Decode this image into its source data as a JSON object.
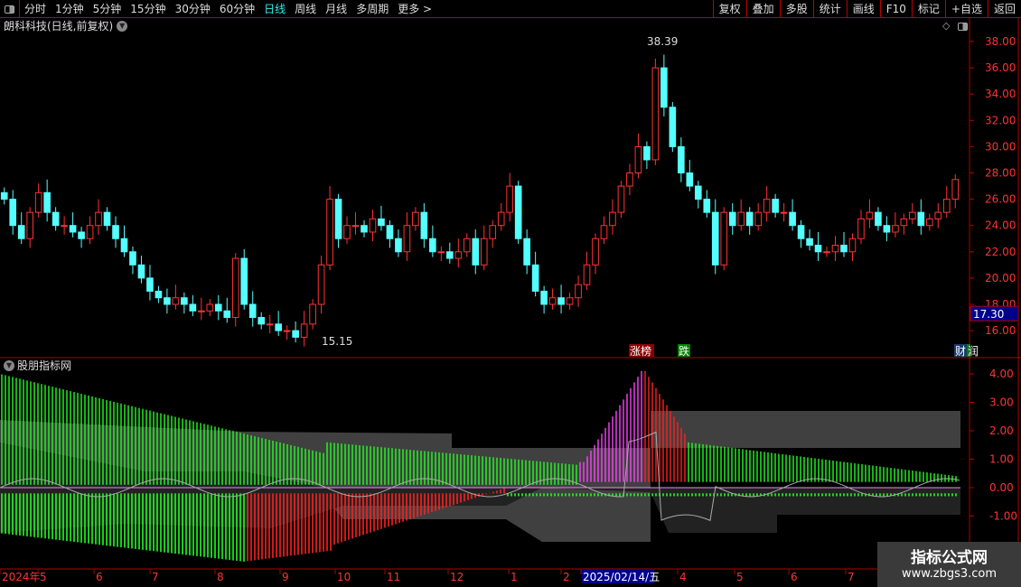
{
  "toolbar": {
    "periods": [
      "分时",
      "1分钟",
      "5分钟",
      "15分钟",
      "30分钟",
      "60分钟",
      "日线",
      "周线",
      "月线",
      "多周期",
      "更多 >"
    ],
    "active": "日线",
    "right_buttons": [
      "复权",
      "叠加",
      "多股",
      "统计",
      "画线",
      "F10",
      "标记",
      "+自选",
      "返回"
    ]
  },
  "stock": {
    "title": "朗科科技(日线,前复权)",
    "current_price": "17.30",
    "high_label": "38.39",
    "low_label": "15.15"
  },
  "price_axis": {
    "ticks": [
      "38.00",
      "36.00",
      "34.00",
      "32.00",
      "30.00",
      "28.00",
      "26.00",
      "24.00",
      "22.00",
      "20.00",
      "18.00",
      "16.00"
    ]
  },
  "markers": {
    "limit_up": "涨榜",
    "drop": "跌",
    "finance": "财",
    "extra": "润"
  },
  "indicator": {
    "title": "股朋指标网",
    "ticks": [
      "4.00",
      "3.00",
      "2.00",
      "1.00",
      "0.00",
      "-1.00"
    ]
  },
  "time_axis": {
    "labels": [
      "2024年",
      "5",
      "6",
      "7",
      "8",
      "9",
      "10",
      "11",
      "12",
      "1",
      "2",
      "2025/02/14/五",
      "4",
      "5",
      "6",
      "7"
    ]
  },
  "watermark": {
    "line1": "指标公式网",
    "line2": "www.zbgs3.com"
  },
  "colors": {
    "up": "#ff3232",
    "down": "#54ffff",
    "grid": "#b00000",
    "accent": "#00e000"
  },
  "chart_data": {
    "type": "candlestick",
    "ylim": [
      15,
      39
    ],
    "closes": [
      26,
      24,
      23,
      25,
      26.5,
      25,
      24,
      24,
      23.5,
      23,
      24,
      25,
      24,
      23,
      22,
      21,
      20,
      19,
      18.5,
      18,
      18.5,
      18,
      17.5,
      17.5,
      18,
      17.5,
      17,
      21.5,
      18,
      17,
      16.5,
      16.5,
      16,
      16,
      15.5,
      16.5,
      18,
      21,
      26,
      23,
      24,
      24,
      23.5,
      24.5,
      24,
      23,
      22,
      24,
      25,
      23,
      22,
      22,
      21.5,
      22,
      23,
      21,
      23,
      24,
      25,
      27,
      23,
      21,
      19,
      18,
      18.5,
      18,
      18.5,
      19.5,
      21,
      23,
      24,
      25,
      27,
      28,
      30,
      29,
      36,
      33,
      30,
      28,
      27,
      26,
      25,
      21,
      25,
      24,
      25,
      24,
      25,
      26,
      25,
      25,
      24,
      23,
      22.5,
      22,
      22,
      22.5,
      22,
      23,
      24.5,
      25,
      24,
      23.5,
      24,
      24.5,
      25,
      24,
      24.5,
      25,
      26,
      27.5
    ]
  }
}
